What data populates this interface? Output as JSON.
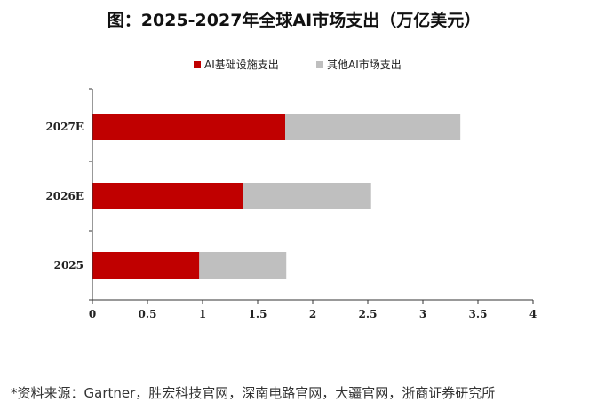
{
  "chart_data": {
    "type": "bar",
    "orientation": "horizontal",
    "stacked": true,
    "title": "图：2025-2027年全球AI市场支出（万亿美元）",
    "categories": [
      "2027E",
      "2026E",
      "2025"
    ],
    "series": [
      {
        "name": "AI基础设施支出",
        "values": [
          1.75,
          1.37,
          0.97
        ],
        "color": "#c00000"
      },
      {
        "name": "其他AI市场支出",
        "values": [
          1.59,
          1.16,
          0.79
        ],
        "color": "#bfbfbf"
      }
    ],
    "xlim": [
      0,
      4
    ],
    "xticks": [
      "0",
      "0.5",
      "1",
      "1.5",
      "2",
      "2.5",
      "3",
      "3.5",
      "4"
    ],
    "legend_position": "top",
    "grid": false
  },
  "source_text": "*资料来源：Gartner，胜宏科技官网，深南电路官网，大疆官网，浙商证券研究所"
}
